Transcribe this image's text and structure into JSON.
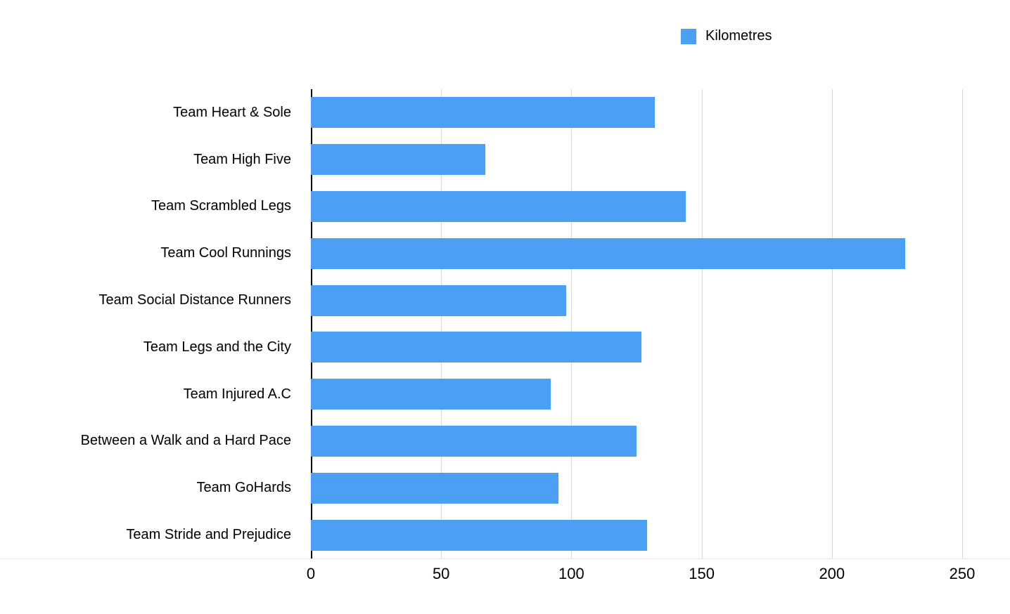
{
  "chart_data": {
    "type": "bar",
    "orientation": "horizontal",
    "title": "",
    "series_label": "Kilometres",
    "categories": [
      "Team Heart & Sole",
      "Team High Five",
      "Team Scrambled Legs",
      "Team Cool Runnings",
      "Team Social Distance Runners",
      "Team Legs and the City",
      "Team Injured A.C",
      "Between a Walk and a Hard Pace",
      "Team GoHards",
      "Team Stride and Prejudice"
    ],
    "values": [
      132,
      67,
      144,
      228,
      98,
      127,
      92,
      125,
      95,
      129
    ],
    "xlabel": "",
    "ylabel": "",
    "xlim": [
      0,
      250
    ],
    "xticks": [
      0,
      50,
      100,
      150,
      200,
      250
    ],
    "grid": true,
    "legend_position": "top",
    "bar_color": "#4a9ff5"
  },
  "colors": {
    "accent": "#4a9ff5",
    "gridline": "#d9d9d9",
    "axis": "#000000",
    "text": "#000000",
    "background": "#ffffff"
  }
}
